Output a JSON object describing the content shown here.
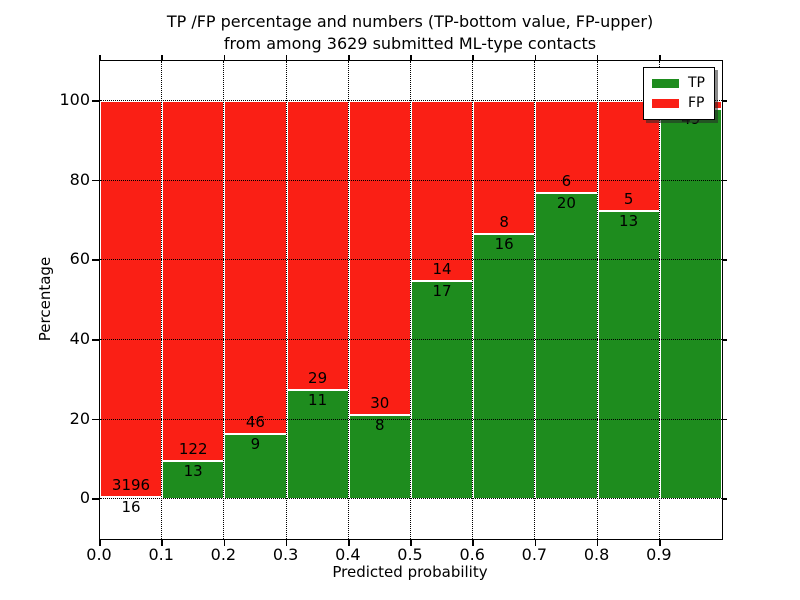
{
  "chart_data": {
    "type": "bar",
    "stacked": true,
    "normalized_to_percent": true,
    "title_line1": "TP /FP percentage and numbers (TP-bottom value, FP-upper)",
    "title_line2": "from among 3629 submitted ML-type contacts",
    "xlabel": "Predicted probability",
    "ylabel": "Percentage",
    "xlim": [
      0.0,
      1.0
    ],
    "ylim": [
      -10,
      110
    ],
    "y_ticks": [
      0,
      20,
      40,
      60,
      80,
      100
    ],
    "x_tick_labels": [
      "0.0",
      "0.1",
      "0.2",
      "0.3",
      "0.4",
      "0.5",
      "0.6",
      "0.7",
      "0.8",
      "0.9"
    ],
    "grid": true,
    "grid_style": "dotted",
    "bin_width": 0.1,
    "total_contacts": 3629,
    "colors": {
      "tp": "#1e8c1e",
      "fp": "#fa1f15",
      "grid": "#000000",
      "spine": "#000000",
      "bar_edge": "#ffffff",
      "background": "#ffffff"
    },
    "legend": {
      "position": "upper-right",
      "entries": [
        {
          "label": "TP",
          "color": "#1e8c1e"
        },
        {
          "label": "FP",
          "color": "#fa1f15"
        }
      ]
    },
    "bins": [
      {
        "range": [
          0.0,
          0.1
        ],
        "tp_label": "16",
        "fp_label": "3196",
        "tp_count": 16,
        "fp_count": 3196,
        "tp_pct": 0.5
      },
      {
        "range": [
          0.1,
          0.2
        ],
        "tp_label": "13",
        "fp_label": "122",
        "tp_count": 13,
        "fp_count": 122,
        "tp_pct": 9.63
      },
      {
        "range": [
          0.2,
          0.3
        ],
        "tp_label": "9",
        "fp_label": "46",
        "tp_count": 9,
        "fp_count": 46,
        "tp_pct": 16.36
      },
      {
        "range": [
          0.3,
          0.4
        ],
        "tp_label": "11",
        "fp_label": "29",
        "tp_count": 11,
        "fp_count": 29,
        "tp_pct": 27.5
      },
      {
        "range": [
          0.4,
          0.5
        ],
        "tp_label": "8",
        "fp_label": "30",
        "tp_count": 8,
        "fp_count": 30,
        "tp_pct": 21.05
      },
      {
        "range": [
          0.5,
          0.6
        ],
        "tp_label": "17",
        "fp_label": "14",
        "tp_count": 17,
        "fp_count": 14,
        "tp_pct": 54.84
      },
      {
        "range": [
          0.6,
          0.7
        ],
        "tp_label": "16",
        "fp_label": "8",
        "tp_count": 16,
        "fp_count": 8,
        "tp_pct": 66.67
      },
      {
        "range": [
          0.7,
          0.8
        ],
        "tp_label": "20",
        "fp_label": "6",
        "tp_count": 20,
        "fp_count": 6,
        "tp_pct": 76.92
      },
      {
        "range": [
          0.8,
          0.9
        ],
        "tp_label": "13",
        "fp_label": "5",
        "tp_count": 13,
        "fp_count": 5,
        "tp_pct": 72.22
      },
      {
        "range": [
          0.9,
          1.0
        ],
        "tp_label": "49",
        "fp_label": "",
        "tp_count": 49,
        "fp_count": null,
        "tp_pct": 98.0
      }
    ]
  }
}
